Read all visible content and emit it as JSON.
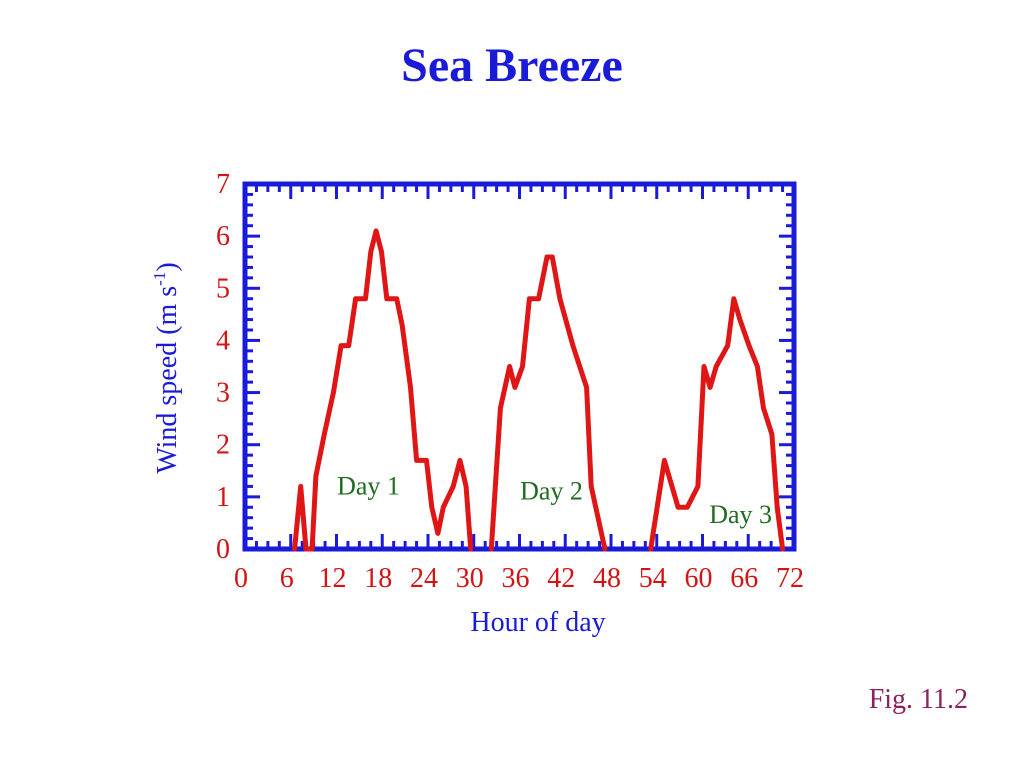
{
  "slide": {
    "title": "Sea Breeze",
    "figure_label": "Fig. 11.2"
  },
  "colors": {
    "title": "#1a1ad9",
    "frame": "#1a1ad9",
    "data_line": "#e01515",
    "tick_labels": "#d11414",
    "annotations": "#1f6b1f",
    "axis_titles": "#1a1ad9"
  },
  "chart_data": {
    "type": "line",
    "xlabel": "Hour of day",
    "ylabel_main": "Wind speed (m s",
    "ylabel_sup": "-1",
    "ylabel_close": ")",
    "xlim": [
      0,
      72
    ],
    "ylim": [
      0,
      7
    ],
    "xticks": [
      0,
      6,
      12,
      18,
      24,
      30,
      36,
      42,
      48,
      54,
      60,
      66,
      72
    ],
    "yticks": [
      0,
      1,
      2,
      3,
      4,
      5,
      6,
      7
    ],
    "grid": false,
    "series": [
      {
        "color": "#e01515",
        "segments": [
          [
            [
              6.5,
              0
            ],
            [
              7.3,
              1.2
            ],
            [
              8,
              0
            ],
            [
              8.8,
              0
            ],
            [
              9.3,
              1.4
            ],
            [
              10.4,
              2.2
            ],
            [
              11.6,
              3.0
            ],
            [
              12.6,
              3.9
            ],
            [
              13.6,
              3.9
            ],
            [
              14.5,
              4.8
            ],
            [
              15.8,
              4.8
            ],
            [
              16.5,
              5.7
            ],
            [
              17.2,
              6.1
            ],
            [
              17.9,
              5.7
            ],
            [
              18.6,
              4.8
            ],
            [
              19.9,
              4.8
            ],
            [
              20.6,
              4.3
            ],
            [
              21.7,
              3.1
            ],
            [
              22.5,
              1.7
            ],
            [
              23.8,
              1.7
            ],
            [
              24.5,
              0.8
            ],
            [
              25.3,
              0.3
            ],
            [
              26,
              0.8
            ],
            [
              27.3,
              1.2
            ],
            [
              28.2,
              1.7
            ],
            [
              29,
              1.2
            ],
            [
              29.6,
              0
            ]
          ],
          [
            [
              32.3,
              0
            ],
            [
              33.5,
              2.7
            ],
            [
              34.7,
              3.5
            ],
            [
              35.4,
              3.1
            ],
            [
              36.4,
              3.5
            ],
            [
              37.3,
              4.8
            ],
            [
              38.5,
              4.8
            ],
            [
              39.6,
              5.6
            ],
            [
              40.3,
              5.6
            ],
            [
              41.3,
              4.8
            ],
            [
              43,
              3.9
            ],
            [
              44.8,
              3.1
            ],
            [
              45.4,
              1.2
            ],
            [
              47.2,
              0
            ]
          ],
          [
            [
              53.2,
              0
            ],
            [
              55,
              1.7
            ],
            [
              56,
              1.2
            ],
            [
              56.8,
              0.8
            ],
            [
              58,
              0.8
            ],
            [
              59.4,
              1.2
            ],
            [
              60.2,
              3.5
            ],
            [
              61,
              3.1
            ],
            [
              61.8,
              3.5
            ],
            [
              63.3,
              3.9
            ],
            [
              64.1,
              4.8
            ],
            [
              64.9,
              4.4
            ],
            [
              66.1,
              3.9
            ],
            [
              67.2,
              3.5
            ],
            [
              68,
              2.7
            ],
            [
              69.1,
              2.2
            ],
            [
              69.8,
              0.8
            ],
            [
              70.5,
              0
            ]
          ]
        ]
      }
    ],
    "annotations": [
      {
        "text": "Day 1",
        "x": 16.2,
        "y": 1.05
      },
      {
        "text": "Day 2",
        "x": 40.2,
        "y": 0.95
      },
      {
        "text": "Day 3",
        "x": 65.0,
        "y": 0.5
      }
    ]
  }
}
